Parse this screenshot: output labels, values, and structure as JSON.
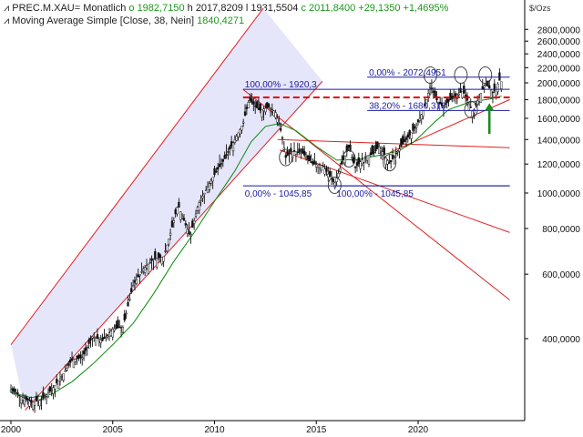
{
  "header": {
    "symbol": "PREC.M.XAU=",
    "interval": "Monatlich",
    "open_label": "o",
    "open": "1982,7150",
    "high_label": "h",
    "high": "2017,8209",
    "low_label": "l",
    "low": "1931,5504",
    "close_label": "c",
    "close": "2011,8400",
    "change": "+29,1350",
    "change_pct": "+1,4695%",
    "ma_name": "Moving Average Simple",
    "ma_params": "[Close, 38, Nein]",
    "ma_value": "1840,4271",
    "unit": "$/Ozs"
  },
  "colors": {
    "up": "#1a9a1a",
    "text": "#222222",
    "channel": "#e02020",
    "channel_fill": "#e6e6fb",
    "fib": "#1a1aa0",
    "ma": "#0a8a0a",
    "bars": "#111111",
    "arrow": "#1a8a1a",
    "dashed": "#e00000"
  },
  "chart_data": {
    "type": "ohlc-line",
    "y_scale": "log",
    "ylim": [
      220,
      3200
    ],
    "xlim": [
      2000.0,
      2024.5
    ],
    "y_ticks": [
      {
        "value": 2800,
        "label": "2800,0000"
      },
      {
        "value": 2600,
        "label": "2600,0000"
      },
      {
        "value": 2400,
        "label": "2400,0000"
      },
      {
        "value": 2200,
        "label": "2200,0000"
      },
      {
        "value": 2000,
        "label": "2000,0000"
      },
      {
        "value": 1800,
        "label": "1800,0000"
      },
      {
        "value": 1600,
        "label": "1600,0000"
      },
      {
        "value": 1400,
        "label": "1400,0000"
      },
      {
        "value": 1200,
        "label": "1200,0000"
      },
      {
        "value": 1000,
        "label": "1000,0000"
      },
      {
        "value": 800,
        "label": "800,0000"
      },
      {
        "value": 600,
        "label": "600,0000"
      },
      {
        "value": 400,
        "label": "400,0000"
      }
    ],
    "x_ticks": [
      {
        "value": 2000,
        "label": "2000"
      },
      {
        "value": 2005,
        "label": "2005"
      },
      {
        "value": 2010,
        "label": "2010"
      },
      {
        "value": 2015,
        "label": "2015"
      },
      {
        "value": 2020,
        "label": "2020"
      }
    ],
    "price_series": {
      "name": "PREC.M.XAU=",
      "points": [
        [
          2000.0,
          290
        ],
        [
          2000.5,
          278
        ],
        [
          2001.0,
          268
        ],
        [
          2001.5,
          272
        ],
        [
          2002.0,
          290
        ],
        [
          2002.5,
          315
        ],
        [
          2003.0,
          350
        ],
        [
          2003.5,
          355
        ],
        [
          2004.0,
          405
        ],
        [
          2004.5,
          395
        ],
        [
          2005.0,
          425
        ],
        [
          2005.5,
          430
        ],
        [
          2006.0,
          560
        ],
        [
          2006.5,
          620
        ],
        [
          2007.0,
          660
        ],
        [
          2007.5,
          670
        ],
        [
          2007.9,
          800
        ],
        [
          2008.2,
          930
        ],
        [
          2008.8,
          760
        ],
        [
          2009.2,
          930
        ],
        [
          2009.9,
          1100
        ],
        [
          2010.5,
          1240
        ],
        [
          2011.0,
          1400
        ],
        [
          2011.4,
          1550
        ],
        [
          2011.7,
          1800
        ],
        [
          2012.2,
          1680
        ],
        [
          2012.7,
          1720
        ],
        [
          2013.0,
          1660
        ],
        [
          2013.3,
          1450
        ],
        [
          2013.5,
          1250
        ],
        [
          2013.8,
          1300
        ],
        [
          2014.3,
          1290
        ],
        [
          2014.8,
          1200
        ],
        [
          2015.3,
          1190
        ],
        [
          2015.9,
          1060
        ],
        [
          2016.2,
          1180
        ],
        [
          2016.6,
          1340
        ],
        [
          2016.9,
          1170
        ],
        [
          2017.4,
          1260
        ],
        [
          2017.8,
          1280
        ],
        [
          2018.1,
          1340
        ],
        [
          2018.6,
          1200
        ],
        [
          2019.0,
          1300
        ],
        [
          2019.5,
          1420
        ],
        [
          2019.9,
          1520
        ],
        [
          2020.3,
          1700
        ],
        [
          2020.6,
          1970
        ],
        [
          2020.9,
          1800
        ],
        [
          2021.2,
          1720
        ],
        [
          2021.6,
          1800
        ],
        [
          2022.2,
          1900
        ],
        [
          2022.7,
          1660
        ],
        [
          2022.9,
          1780
        ],
        [
          2023.3,
          1990
        ],
        [
          2023.7,
          1880
        ],
        [
          2024.0,
          2030
        ],
        [
          2024.1,
          2011.84
        ]
      ]
    },
    "moving_average": {
      "name": "Moving Average Simple",
      "period": 38,
      "points": [
        [
          2000.0,
          285
        ],
        [
          2001.0,
          276
        ],
        [
          2002.0,
          282
        ],
        [
          2003.0,
          305
        ],
        [
          2004.0,
          340
        ],
        [
          2005.0,
          385
        ],
        [
          2006.0,
          440
        ],
        [
          2007.0,
          530
        ],
        [
          2008.0,
          650
        ],
        [
          2009.0,
          780
        ],
        [
          2010.0,
          950
        ],
        [
          2011.0,
          1150
        ],
        [
          2011.8,
          1380
        ],
        [
          2012.5,
          1520
        ],
        [
          2013.2,
          1550
        ],
        [
          2014.0,
          1480
        ],
        [
          2015.0,
          1340
        ],
        [
          2016.0,
          1230
        ],
        [
          2017.0,
          1235
        ],
        [
          2018.0,
          1265
        ],
        [
          2019.0,
          1300
        ],
        [
          2019.8,
          1380
        ],
        [
          2020.8,
          1560
        ],
        [
          2021.5,
          1690
        ],
        [
          2022.5,
          1770
        ],
        [
          2023.5,
          1805
        ],
        [
          2024.1,
          1840.43
        ]
      ]
    },
    "fibonacci_levels": [
      {
        "label": "0,00% - 2072,4951",
        "value": 2072.4951,
        "x_start": 2017.5,
        "x_end": 2024.5
      },
      {
        "label": "100,00% - 1920,3",
        "value": 1920.3,
        "x_start": 2011.4,
        "x_end": 2024.5
      },
      {
        "label": "38,20% - 1680,316",
        "value": 1680.316,
        "x_start": 2017.5,
        "x_end": 2024.5
      },
      {
        "label": "0,00% - 1045,85",
        "value": 1045.85,
        "x_start": 2011.4,
        "x_end": 2024.5
      },
      {
        "label": "100,00% - 1045,85",
        "value": 1045.85,
        "x_start": 2015.9,
        "x_end": 2024.5
      }
    ],
    "horizontal_lines": [
      {
        "value": 1825,
        "style": "dashed",
        "x_start": 2011.4,
        "x_end": 2024.5
      }
    ],
    "trend_lines": [
      {
        "points": [
          [
            2000.0,
            385
          ],
          [
            2012.4,
            3200
          ]
        ],
        "role": "channel-upper"
      },
      {
        "points": [
          [
            2000.7,
            255
          ],
          [
            2015.3,
            2020
          ]
        ],
        "role": "channel-lower"
      },
      {
        "points": [
          [
            2011.4,
            1920
          ],
          [
            2024.5,
            510
          ]
        ],
        "role": "downtrend"
      },
      {
        "points": [
          [
            2013.2,
            1310
          ],
          [
            2024.5,
            780
          ]
        ],
        "role": "downtrend"
      },
      {
        "points": [
          [
            2013.1,
            1400
          ],
          [
            2024.5,
            1330
          ]
        ],
        "role": "resistance"
      },
      {
        "points": [
          [
            2018.6,
            1290
          ],
          [
            2024.5,
            1800
          ]
        ],
        "role": "support"
      }
    ],
    "markers": [
      {
        "type": "circle",
        "x": 2013.5,
        "y": 1250
      },
      {
        "type": "circle",
        "x": 2015.9,
        "y": 1050
      },
      {
        "type": "circle",
        "x": 2016.6,
        "y": 1240
      },
      {
        "type": "circle",
        "x": 2018.6,
        "y": 1210
      },
      {
        "type": "circle",
        "x": 2020.6,
        "y": 2100
      },
      {
        "type": "circle",
        "x": 2022.1,
        "y": 2100
      },
      {
        "type": "circle",
        "x": 2022.6,
        "y": 1690
      },
      {
        "type": "circle",
        "x": 2023.3,
        "y": 2100
      },
      {
        "type": "arrow-up",
        "x": 2023.5,
        "y_from": 1450,
        "y_to": 1760
      }
    ]
  }
}
